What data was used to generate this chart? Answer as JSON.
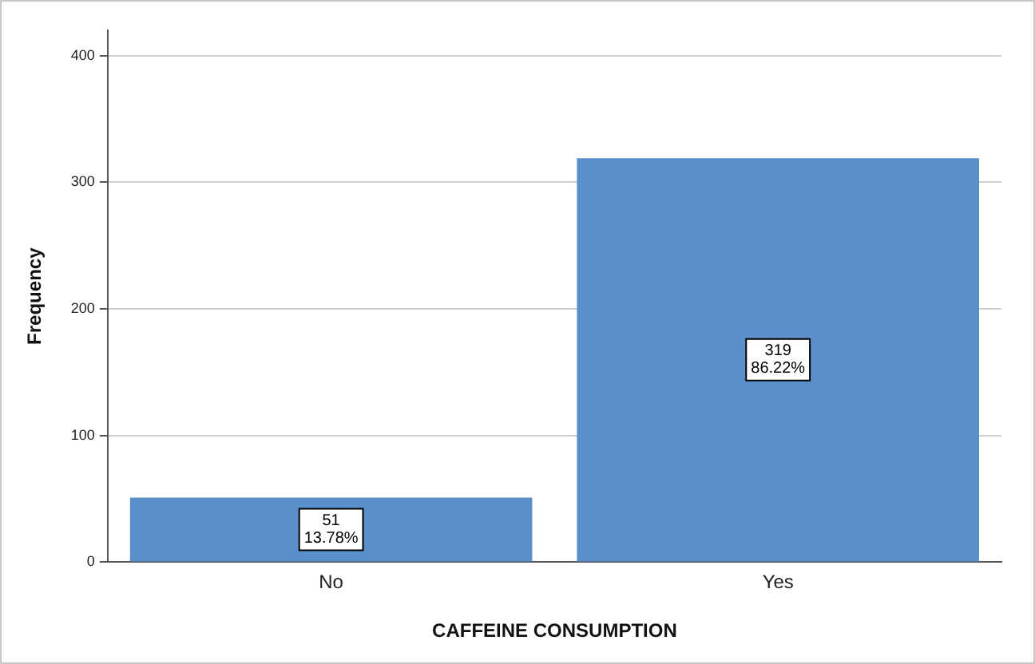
{
  "chart_data": {
    "type": "bar",
    "xlabel": "CAFFEINE CONSUMPTION",
    "ylabel": "Frequency",
    "categories": [
      "No",
      "Yes"
    ],
    "values": [
      51,
      319
    ],
    "value_labels": [
      "51\n13.78%",
      "319\n86.22%"
    ],
    "color": "#5b8fcc",
    "ylim": [
      0,
      420
    ],
    "yticks": [
      0,
      100,
      200,
      300,
      400
    ],
    "grid": "y"
  }
}
